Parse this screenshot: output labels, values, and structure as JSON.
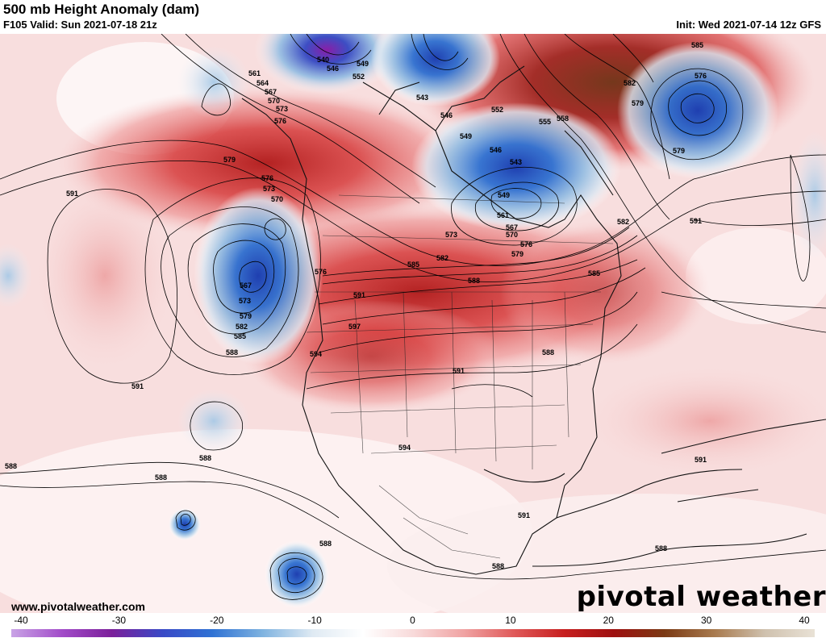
{
  "header": {
    "title": "500 mb Height Anomaly (dam)",
    "valid": "F105 Valid: Sun 2021-07-18 21z",
    "init": "Init: Wed 2021-07-14 12z GFS"
  },
  "footer": {
    "url": "www.pivotalweather.com",
    "logo": "pivotal weather"
  },
  "colorbar": {
    "ticks": [
      "-40",
      "-30",
      "-20",
      "-10",
      "0",
      "10",
      "20",
      "30",
      "40"
    ],
    "min": -40,
    "max": 40,
    "colors": [
      "#c9a3e6",
      "#a24cc9",
      "#7b1f9a",
      "#3949c6",
      "#2f72d4",
      "#7fb3e0",
      "#dfeaf3",
      "#ffffff",
      "#f8dada",
      "#f0a3a3",
      "#e05a5a",
      "#c71f1f",
      "#9e1010",
      "#7b3a14",
      "#a87a4e",
      "#cfc1ae",
      "#e9e2d6"
    ]
  },
  "contour_labels": [
    "540",
    "546",
    "549",
    "552",
    "555",
    "558",
    "561",
    "564",
    "567",
    "570",
    "573",
    "576",
    "579",
    "582",
    "585",
    "588",
    "591",
    "594",
    "597",
    "543",
    "576"
  ],
  "map_labels": [
    {
      "text": "561"
    },
    {
      "text": "564"
    },
    {
      "text": "567"
    },
    {
      "text": "570"
    },
    {
      "text": "573"
    },
    {
      "text": "576"
    },
    {
      "text": "540"
    },
    {
      "text": "546"
    },
    {
      "text": "549"
    },
    {
      "text": "552"
    },
    {
      "text": "543"
    },
    {
      "text": "546"
    },
    {
      "text": "552"
    },
    {
      "text": "555"
    },
    {
      "text": "558"
    },
    {
      "text": "549"
    },
    {
      "text": "546"
    },
    {
      "text": "543"
    },
    {
      "text": "549"
    },
    {
      "text": "585"
    },
    {
      "text": "582"
    },
    {
      "text": "579"
    },
    {
      "text": "576"
    },
    {
      "text": "579"
    },
    {
      "text": "591"
    },
    {
      "text": "579"
    },
    {
      "text": "576"
    },
    {
      "text": "573"
    },
    {
      "text": "570"
    },
    {
      "text": "567"
    },
    {
      "text": "573"
    },
    {
      "text": "579"
    },
    {
      "text": "582"
    },
    {
      "text": "585"
    },
    {
      "text": "588"
    },
    {
      "text": "576"
    },
    {
      "text": "591"
    },
    {
      "text": "597"
    },
    {
      "text": "594"
    },
    {
      "text": "585"
    },
    {
      "text": "582"
    },
    {
      "text": "573"
    },
    {
      "text": "588"
    },
    {
      "text": "561"
    },
    {
      "text": "567"
    },
    {
      "text": "570"
    },
    {
      "text": "576"
    },
    {
      "text": "579"
    },
    {
      "text": "582"
    },
    {
      "text": "585"
    },
    {
      "text": "591"
    },
    {
      "text": "591"
    },
    {
      "text": "588"
    },
    {
      "text": "594"
    },
    {
      "text": "591"
    },
    {
      "text": "588"
    },
    {
      "text": "588"
    },
    {
      "text": "588"
    },
    {
      "text": "588"
    },
    {
      "text": "591"
    },
    {
      "text": "588"
    },
    {
      "text": "591"
    },
    {
      "text": "588"
    }
  ]
}
